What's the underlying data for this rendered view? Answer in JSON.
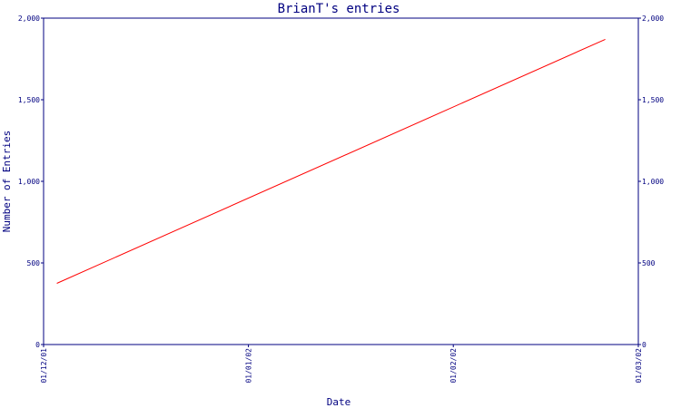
{
  "chart_data": {
    "type": "line",
    "title": "BrianT's entries",
    "xlabel": "Date",
    "ylabel": "Number of Entries",
    "ylim": [
      0,
      2000
    ],
    "y_ticks": [
      "0",
      "500",
      "1,000",
      "1,500",
      "2,000"
    ],
    "y_tick_values": [
      0,
      500,
      1000,
      1500,
      2000
    ],
    "y2_ticks": [
      "0",
      "500",
      "1,000",
      "1,500",
      "2,000"
    ],
    "x_ticks": [
      "01/12/01",
      "01/01/02",
      "01/02/02",
      "01/03/02"
    ],
    "x_tick_dates": [
      "2001-12-01",
      "2002-01-01",
      "2002-02-01",
      "2002-03-01"
    ],
    "xlim": [
      "2001-12-01",
      "2002-03-01"
    ],
    "grid": false,
    "series": [
      {
        "color": "#ff0000",
        "x": [
          "2001-12-03",
          "2002-02-24"
        ],
        "y": [
          375,
          1870
        ]
      }
    ]
  },
  "colors": {
    "axis": "#000080",
    "line": "#ff0000",
    "background": "#ffffff"
  }
}
